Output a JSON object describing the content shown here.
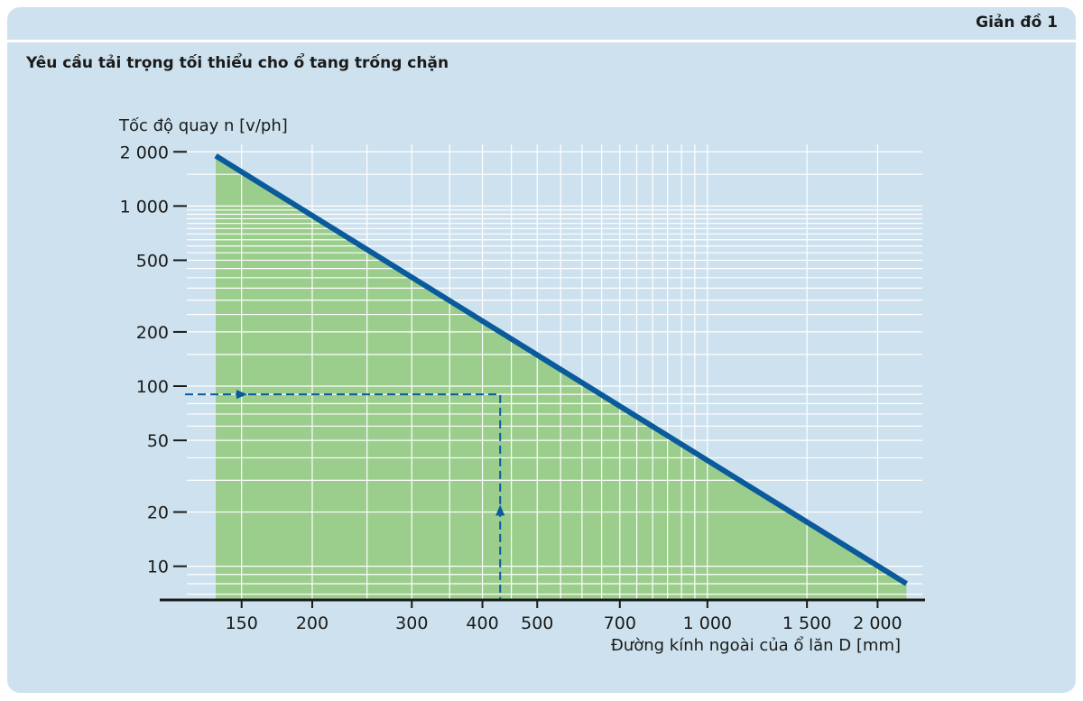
{
  "header": {
    "label": "Giản đồ 1"
  },
  "chart_data": {
    "type": "line",
    "title": "Yêu cầu tải trọng tối thiểu cho ổ tang trống chặn",
    "ylabel": "Tốc độ quay n [v/ph]",
    "xlabel": "Đường kính ngoài của ổ lăn D [mm]",
    "x_scale": "log",
    "y_scale": "log",
    "x_ticks": [
      {
        "value": 150,
        "label": "150"
      },
      {
        "value": 200,
        "label": "200"
      },
      {
        "value": 300,
        "label": "300"
      },
      {
        "value": 400,
        "label": "400"
      },
      {
        "value": 500,
        "label": "500"
      },
      {
        "value": 700,
        "label": "700"
      },
      {
        "value": 1000,
        "label": "1 000"
      },
      {
        "value": 1500,
        "label": "1 500"
      },
      {
        "value": 2000,
        "label": "2 000"
      }
    ],
    "y_ticks": [
      {
        "value": 10,
        "label": "10"
      },
      {
        "value": 20,
        "label": "20"
      },
      {
        "value": 50,
        "label": "50"
      },
      {
        "value": 100,
        "label": "100"
      },
      {
        "value": 200,
        "label": "200"
      },
      {
        "value": 500,
        "label": "500"
      },
      {
        "value": 1000,
        "label": "1 000"
      },
      {
        "value": 2000,
        "label": "2 000"
      }
    ],
    "xlim": [
      120,
      2400
    ],
    "ylim": [
      6.5,
      2200
    ],
    "grid": true,
    "series": [
      {
        "points": [
          [
            135,
            1900
          ],
          [
            2250,
            8
          ]
        ]
      }
    ],
    "example": {
      "x": 430,
      "y": 90
    },
    "colors": {
      "background": "#cde2ee",
      "fill": "#9bcd8c",
      "line": "#0a5a9c",
      "grid": "#ffffff",
      "dashed": "#0a5a9c",
      "axis": "#1a1a1a"
    }
  }
}
